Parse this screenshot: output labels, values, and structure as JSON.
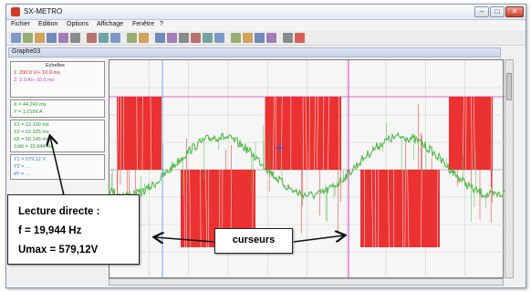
{
  "window": {
    "title": "SX-METRO",
    "buttons": {
      "minimize": "–",
      "maximize": "□",
      "close": "✕"
    }
  },
  "menu": [
    "Fichier",
    "Edition",
    "Options",
    "Affichage",
    "Fenêtre",
    "?"
  ],
  "toolbar_icons": [
    "new-icon",
    "open-icon",
    "save-icon",
    "export-icon",
    "import-icon",
    "print-icon",
    "cut-icon",
    "copy-icon",
    "paste-icon",
    "delete-icon",
    "erase-icon",
    "grid-icon",
    "table-icon",
    "curve-icon",
    "zoom-in-icon",
    "zoom-out-icon",
    "zoom-fit-icon",
    "xy-icon",
    "edit-icon",
    "window-icon",
    "window-alt-icon",
    "help-icon",
    "stop-icon"
  ],
  "graph": {
    "title": "Graphe03"
  },
  "left_panel": {
    "scales_title": "Echelles",
    "scales": [
      "1: 200.0 V/÷        10.0 ms",
      "2: 2.0 A/÷         10.0 ms"
    ],
    "cursor_xy": [
      "X = 44.240 ms",
      "Y = 1.0166 A"
    ],
    "cursor_diffs": [
      "X1 = 12.100 ms",
      "X2 = 62.325 ms",
      "dX = 50.145 ms",
      "1/dX = 19.944 Hz"
    ],
    "cursor_y": [
      "Y1 = 579.12 V",
      "Y2 = …",
      "dY = …"
    ]
  },
  "annotation": {
    "line1": "Lecture directe :",
    "line2": "f = 19,944 Hz",
    "line3": "Umax = 579,12V",
    "curseurs": "curseurs"
  },
  "colors": {
    "voltage": "#ea1c1c",
    "current": "#52b84a",
    "grid": "#d2d2d2",
    "cursor_magenta": "#d040c0",
    "cursor_blue": "#6ea6e6"
  }
}
